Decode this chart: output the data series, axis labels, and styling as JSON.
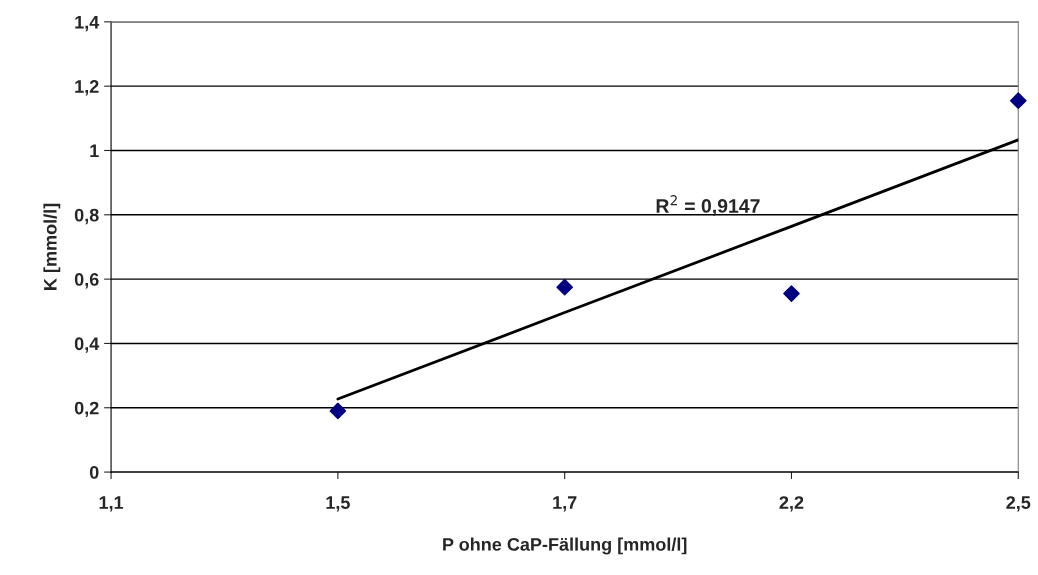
{
  "chart_data": {
    "type": "scatter",
    "xlabel": "P ohne CaP-Fällung [mmol/l]",
    "ylabel": "K [mmol/l]",
    "categories": [
      "1,1",
      "1,5",
      "1,7",
      "2,2",
      "2,5"
    ],
    "series": [
      {
        "color": "#000080",
        "marker": "diamond",
        "values": [
          null,
          0.19,
          0.575,
          0.555,
          1.155
        ]
      },
      {
        "type": "line",
        "color": "#000000",
        "line_style": "solid",
        "values": [
          null,
          0.227,
          0.496,
          0.764,
          1.033
        ]
      }
    ],
    "ylim": [
      0,
      1.4
    ],
    "yticks": [
      {
        "value": 0,
        "label": "0"
      },
      {
        "value": 0.2,
        "label": "0,2"
      },
      {
        "value": 0.4,
        "label": "0,4"
      },
      {
        "value": 0.6,
        "label": "0,6"
      },
      {
        "value": 0.8,
        "label": "0,8"
      },
      {
        "value": 1,
        "label": "1"
      },
      {
        "value": 1.2,
        "label": "1,2"
      },
      {
        "value": 1.4,
        "label": "1,4"
      }
    ],
    "grid": "y",
    "annotations": [
      "R$^{2}$ = 0,9147"
    ]
  }
}
